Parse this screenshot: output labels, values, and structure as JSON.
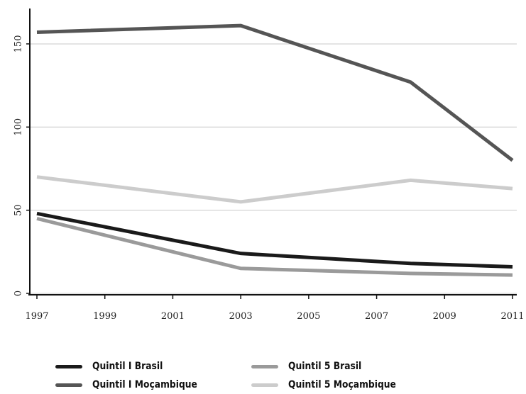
{
  "chart_data": {
    "type": "line",
    "title": "",
    "xlabel": "",
    "ylabel": "",
    "x_ticks": [
      "1997",
      "1999",
      "2001",
      "2003",
      "2005",
      "2007",
      "2009",
      "2011"
    ],
    "y_ticks": [
      "0",
      "50",
      "100",
      "150"
    ],
    "xlim": [
      1997,
      2011
    ],
    "ylim": [
      0,
      170
    ],
    "grid": "horizontal",
    "legend_position": "bottom",
    "series": [
      {
        "name": "Quintil I Brasil",
        "color": "#1a1a1a",
        "x": [
          1997,
          2003,
          2008,
          2011
        ],
        "y": [
          48,
          24,
          18,
          16
        ]
      },
      {
        "name": "Quintil I Moçambique",
        "color": "#555555",
        "x": [
          1997,
          2003,
          2008,
          2011
        ],
        "y": [
          157,
          161,
          127,
          80
        ]
      },
      {
        "name": "Quintil 5 Brasil",
        "color": "#9a9a9a",
        "x": [
          1997,
          2003,
          2008,
          2011
        ],
        "y": [
          45,
          15,
          12,
          11
        ]
      },
      {
        "name": "Quintil 5 Moçambique",
        "color": "#cccccc",
        "x": [
          1997,
          2003,
          2008,
          2011
        ],
        "y": [
          70,
          55,
          68,
          63
        ]
      }
    ]
  }
}
